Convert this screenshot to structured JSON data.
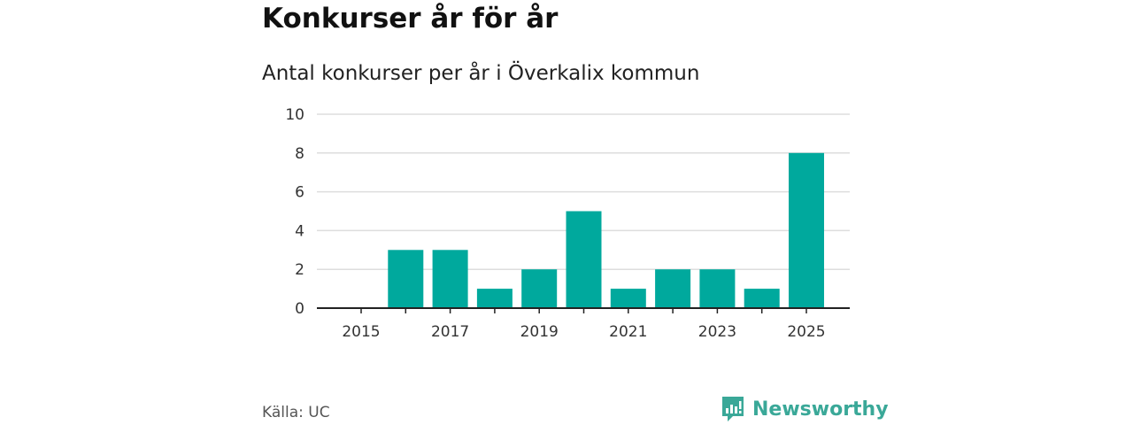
{
  "header": {
    "title": "Konkurser år för år",
    "subtitle": "Antal konkurser per år i Överkalix kommun"
  },
  "footer": {
    "source": "Källa: UC",
    "brand": "Newsworthy"
  },
  "colors": {
    "bar": "#00a99d",
    "grid": "#dddddd",
    "axis": "#222222",
    "brand": "#3aa898"
  },
  "chart_data": {
    "type": "bar",
    "categories": [
      2015,
      2016,
      2017,
      2018,
      2019,
      2020,
      2021,
      2022,
      2023,
      2024,
      2025
    ],
    "values": [
      0,
      3,
      3,
      1,
      2,
      5,
      1,
      2,
      2,
      1,
      8
    ],
    "x_tick_labels": [
      "2015",
      "2017",
      "2019",
      "2021",
      "2023",
      "2025"
    ],
    "y_ticks": [
      0,
      2,
      4,
      6,
      8,
      10
    ],
    "ylim": [
      0,
      10
    ],
    "grid": "horizontal",
    "title": "Konkurser år för år",
    "subtitle": "Antal konkurser per år i Överkalix kommun",
    "xlabel": "",
    "ylabel": ""
  }
}
